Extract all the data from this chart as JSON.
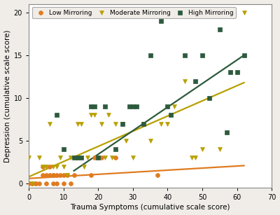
{
  "xlabel": "Trauma Symptoms (cumulative scale score)",
  "ylabel": "Depression (cumulative scale score)",
  "xlim": [
    0,
    70
  ],
  "ylim": [
    -0.5,
    21
  ],
  "xticks": [
    0,
    10,
    20,
    30,
    40,
    50,
    60,
    70
  ],
  "yticks": [
    0,
    5,
    10,
    15,
    20
  ],
  "background_color": "#f0ede8",
  "plot_bg_color": "#ffffff",
  "low_mirroring": {
    "color": "#e07b20",
    "label": "Low Mirroring",
    "marker": "o",
    "x": [
      0,
      0,
      1,
      1,
      2,
      2,
      3,
      4,
      4,
      5,
      5,
      6,
      6,
      7,
      7,
      7,
      8,
      8,
      9,
      10,
      10,
      11,
      12,
      13,
      14,
      18,
      19,
      21,
      25,
      37
    ],
    "y": [
      0,
      0,
      0,
      0,
      0,
      0,
      0,
      1,
      2,
      0,
      1,
      1,
      2,
      1,
      1,
      0,
      1,
      0,
      1,
      1,
      0,
      1,
      0,
      1,
      3,
      1,
      3,
      3,
      3,
      1
    ],
    "line_x": [
      0,
      62
    ],
    "line_y": [
      0.6,
      2.1
    ]
  },
  "moderate_mirroring": {
    "color": "#b8a000",
    "label": "Moderate Mirroring",
    "marker": "v",
    "x": [
      0,
      1,
      3,
      4,
      5,
      6,
      7,
      8,
      9,
      10,
      11,
      12,
      13,
      14,
      15,
      16,
      17,
      18,
      19,
      20,
      21,
      22,
      23,
      24,
      25,
      27,
      28,
      30,
      33,
      35,
      38,
      40,
      42,
      45,
      47,
      48,
      50,
      55,
      62
    ],
    "y": [
      3,
      0,
      3,
      2,
      2,
      7,
      2,
      2,
      3,
      2,
      1,
      3,
      3,
      7,
      7,
      2,
      3,
      8,
      8,
      3,
      7,
      3,
      8,
      3,
      7,
      7,
      5,
      3,
      7,
      5,
      7,
      7,
      9,
      12,
      3,
      3,
      4,
      4,
      20
    ],
    "line_x": [
      0,
      62
    ],
    "line_y": [
      0.8,
      11.8
    ]
  },
  "high_mirroring": {
    "color": "#2d5a3d",
    "label": "High Mirroring",
    "marker": "s",
    "x": [
      8,
      10,
      13,
      14,
      15,
      18,
      19,
      20,
      22,
      25,
      27,
      29,
      30,
      31,
      33,
      35,
      38,
      40,
      41,
      45,
      48,
      50,
      52,
      55,
      57,
      58,
      60,
      62
    ],
    "y": [
      8,
      4,
      3,
      3,
      3,
      9,
      9,
      3,
      9,
      4,
      7,
      9,
      9,
      9,
      7,
      15,
      19,
      9,
      8,
      15,
      12,
      15,
      10,
      18,
      6,
      13,
      13,
      15
    ],
    "line_x": [
      13,
      62
    ],
    "line_y": [
      1.5,
      15.0
    ]
  }
}
